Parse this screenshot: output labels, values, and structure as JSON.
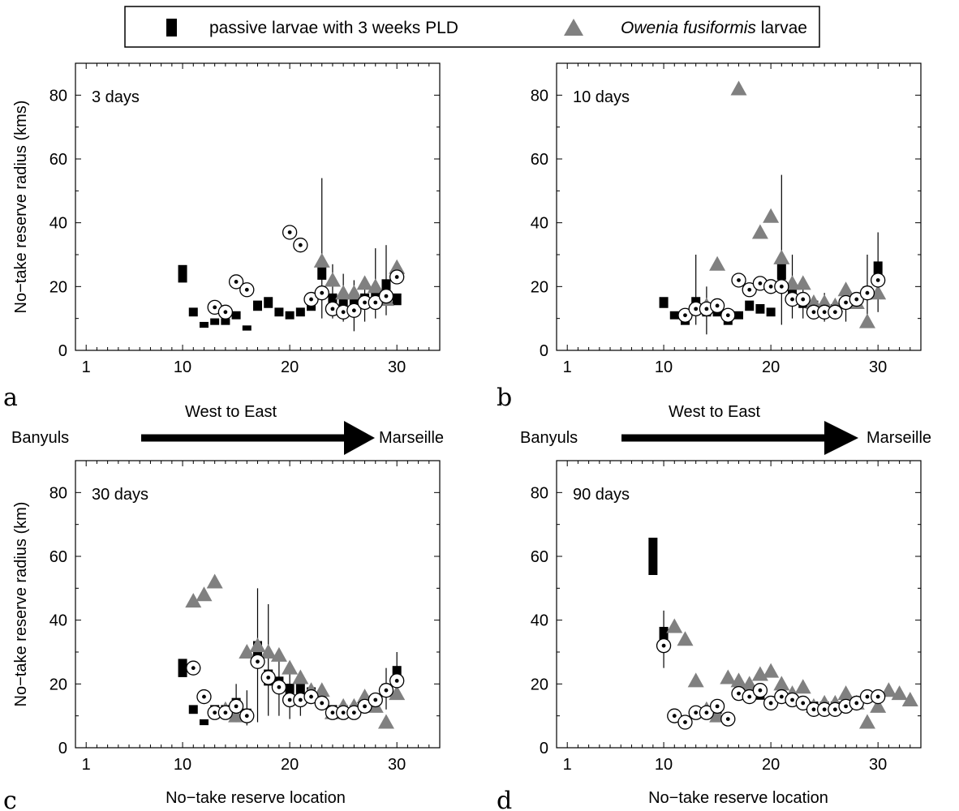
{
  "legend": {
    "passive_label": "passive larvae with 3 weeks PLD",
    "owenia_label_italic": "Owenia fusiformis",
    "owenia_label_rest": " larvae"
  },
  "colors": {
    "passive": "#000000",
    "owenia": "#808080",
    "axis": "#000000"
  },
  "direction": {
    "west": "Banyuls",
    "east": "Marseille",
    "label": "West to East"
  },
  "axes": {
    "ylabel_top": "No−take reserve radius (kms)",
    "ylabel_bottom": "No−take reserve radius (km)",
    "xlabel": "No−take reserve location",
    "xticks": [
      1,
      10,
      20,
      30
    ],
    "yticks": [
      0,
      20,
      40,
      60,
      80
    ],
    "xlim": [
      0,
      34
    ],
    "ylim": [
      0,
      90
    ]
  },
  "chart_data": [
    {
      "type": "scatter",
      "panel": "a",
      "annotation": "3 days",
      "series": [
        {
          "name": "passive larvae with 3 weeks PLD",
          "marker": "box",
          "points": [
            [
              10,
              24
            ],
            [
              11,
              12
            ],
            [
              12,
              8
            ],
            [
              13,
              9
            ],
            [
              14,
              9
            ],
            [
              15,
              11
            ],
            [
              16,
              7
            ],
            [
              17,
              14
            ],
            [
              18,
              15
            ],
            [
              19,
              12
            ],
            [
              20,
              11
            ],
            [
              21,
              12
            ],
            [
              22,
              14
            ],
            [
              23,
              25
            ],
            [
              24,
              16
            ],
            [
              25,
              15
            ],
            [
              26,
              15
            ],
            [
              27,
              16
            ],
            [
              28,
              17
            ],
            [
              29,
              20
            ],
            [
              30,
              16
            ]
          ],
          "whiskers": [
            [
              23,
              10,
              54
            ],
            [
              24,
              10,
              27
            ],
            [
              25,
              9,
              24
            ],
            [
              26,
              6,
              22
            ],
            [
              27,
              9,
              22
            ],
            [
              28,
              10,
              32
            ],
            [
              29,
              11,
              33
            ]
          ]
        },
        {
          "name": "Owenia fusiformis larvae",
          "marker": "triangle",
          "points": [
            [
              23,
              28
            ],
            [
              24,
              22
            ],
            [
              25,
              18
            ],
            [
              26,
              18
            ],
            [
              27,
              21
            ],
            [
              28,
              20
            ],
            [
              29,
              16
            ],
            [
              30,
              26
            ]
          ]
        },
        {
          "marker": "circle-dot",
          "points": [
            [
              13,
              13.5
            ],
            [
              14,
              12
            ],
            [
              15,
              21.5
            ],
            [
              16,
              19
            ],
            [
              20,
              37
            ],
            [
              21,
              33
            ],
            [
              22,
              16
            ],
            [
              23,
              18
            ],
            [
              24,
              13
            ],
            [
              25,
              12
            ],
            [
              26,
              12.5
            ],
            [
              27,
              15
            ],
            [
              28,
              15
            ],
            [
              29,
              17
            ],
            [
              30,
              23
            ]
          ]
        }
      ]
    },
    {
      "type": "scatter",
      "panel": "b",
      "annotation": "10 days",
      "series": [
        {
          "name": "passive larvae with 3 weeks PLD",
          "marker": "box",
          "points": [
            [
              10,
              15
            ],
            [
              11,
              11
            ],
            [
              12,
              9
            ],
            [
              13,
              15
            ],
            [
              14,
              12
            ],
            [
              15,
              12
            ],
            [
              16,
              9
            ],
            [
              17,
              11
            ],
            [
              18,
              14
            ],
            [
              19,
              13
            ],
            [
              20,
              12
            ],
            [
              21,
              25
            ],
            [
              22,
              18
            ],
            [
              23,
              15
            ],
            [
              24,
              14
            ],
            [
              25,
              13
            ],
            [
              26,
              13
            ],
            [
              27,
              15
            ],
            [
              28,
              15
            ],
            [
              29,
              18
            ],
            [
              30,
              25
            ]
          ],
          "whiskers": [
            [
              13,
              8,
              30
            ],
            [
              14,
              5,
              20
            ],
            [
              21,
              8,
              55
            ],
            [
              22,
              10,
              30
            ],
            [
              23,
              10,
              22
            ],
            [
              25,
              9,
              18
            ],
            [
              27,
              9,
              20
            ],
            [
              29,
              10,
              30
            ],
            [
              30,
              12,
              37
            ]
          ]
        },
        {
          "name": "Owenia fusiformis larvae",
          "marker": "triangle",
          "points": [
            [
              14,
              14
            ],
            [
              15,
              27
            ],
            [
              17,
              82
            ],
            [
              19,
              37
            ],
            [
              20,
              42
            ],
            [
              21,
              29
            ],
            [
              22,
              21
            ],
            [
              23,
              21
            ],
            [
              24,
              15
            ],
            [
              25,
              15
            ],
            [
              26,
              14
            ],
            [
              27,
              19
            ],
            [
              28,
              15
            ],
            [
              29,
              9
            ],
            [
              30,
              18
            ]
          ]
        },
        {
          "marker": "circle-dot",
          "points": [
            [
              12,
              11
            ],
            [
              13,
              13
            ],
            [
              14,
              13
            ],
            [
              15,
              14
            ],
            [
              16,
              11
            ],
            [
              17,
              22
            ],
            [
              18,
              19
            ],
            [
              19,
              21
            ],
            [
              20,
              20
            ],
            [
              21,
              20
            ],
            [
              22,
              16
            ],
            [
              23,
              16
            ],
            [
              24,
              12
            ],
            [
              25,
              12
            ],
            [
              26,
              12
            ],
            [
              27,
              15
            ],
            [
              28,
              16
            ],
            [
              29,
              18
            ],
            [
              30,
              22
            ]
          ]
        }
      ]
    },
    {
      "type": "scatter",
      "panel": "c",
      "annotation": "30 days",
      "series": [
        {
          "name": "passive larvae with 3 weeks PLD",
          "marker": "box",
          "points": [
            [
              10,
              25
            ],
            [
              11,
              12
            ],
            [
              12,
              8
            ],
            [
              13,
              12
            ],
            [
              14,
              12
            ],
            [
              15,
              14
            ],
            [
              16,
              11
            ],
            [
              17,
              30
            ],
            [
              18,
              22
            ],
            [
              19,
              20
            ],
            [
              20,
              18
            ],
            [
              21,
              18
            ],
            [
              22,
              17
            ],
            [
              23,
              15
            ],
            [
              24,
              12
            ],
            [
              25,
              12
            ],
            [
              26,
              12
            ],
            [
              27,
              14
            ],
            [
              28,
              15
            ],
            [
              29,
              18
            ],
            [
              30,
              23
            ]
          ],
          "whiskers": [
            [
              15,
              8,
              20
            ],
            [
              16,
              7,
              18
            ],
            [
              17,
              8,
              50
            ],
            [
              18,
              10,
              45
            ],
            [
              19,
              10,
              30
            ],
            [
              20,
              9,
              25
            ],
            [
              21,
              10,
              24
            ],
            [
              29,
              12,
              25
            ],
            [
              30,
              15,
              30
            ]
          ]
        },
        {
          "name": "Owenia fusiformis larvae",
          "marker": "triangle",
          "points": [
            [
              11,
              46
            ],
            [
              12,
              48
            ],
            [
              13,
              52
            ],
            [
              14,
              12
            ],
            [
              15,
              10
            ],
            [
              16,
              30
            ],
            [
              17,
              32
            ],
            [
              18,
              30
            ],
            [
              19,
              29
            ],
            [
              20,
              25
            ],
            [
              21,
              22
            ],
            [
              22,
              18
            ],
            [
              23,
              18
            ],
            [
              24,
              11
            ],
            [
              25,
              13
            ],
            [
              26,
              13
            ],
            [
              27,
              16
            ],
            [
              28,
              13
            ],
            [
              29,
              8
            ],
            [
              30,
              17
            ]
          ]
        },
        {
          "marker": "circle-dot",
          "points": [
            [
              11,
              25
            ],
            [
              12,
              16
            ],
            [
              13,
              11
            ],
            [
              14,
              11
            ],
            [
              15,
              13
            ],
            [
              16,
              10
            ],
            [
              17,
              27
            ],
            [
              18,
              22
            ],
            [
              19,
              19
            ],
            [
              20,
              15
            ],
            [
              21,
              15
            ],
            [
              22,
              16
            ],
            [
              23,
              14
            ],
            [
              24,
              11
            ],
            [
              25,
              11
            ],
            [
              26,
              11
            ],
            [
              27,
              13
            ],
            [
              28,
              15
            ],
            [
              29,
              18
            ],
            [
              30,
              21
            ]
          ]
        }
      ]
    },
    {
      "type": "scatter",
      "panel": "d",
      "annotation": "90 days",
      "series": [
        {
          "name": "passive larvae with 3 weeks PLD",
          "marker": "box",
          "points": [
            [
              9,
              60
            ],
            [
              10,
              34
            ],
            [
              11,
              10
            ],
            [
              12,
              8
            ],
            [
              13,
              11
            ],
            [
              14,
              11
            ],
            [
              15,
              12
            ],
            [
              16,
              9
            ],
            [
              17,
              17
            ],
            [
              18,
              16
            ],
            [
              19,
              17
            ],
            [
              20,
              14
            ],
            [
              21,
              16
            ],
            [
              22,
              15
            ],
            [
              23,
              14
            ],
            [
              24,
              13
            ],
            [
              25,
              13
            ],
            [
              26,
              13
            ],
            [
              27,
              14
            ],
            [
              28,
              14
            ],
            [
              29,
              16
            ],
            [
              30,
              16
            ]
          ],
          "whiskers": [
            [
              10,
              25,
              43
            ]
          ]
        },
        {
          "name": "Owenia fusiformis larvae",
          "marker": "triangle",
          "points": [
            [
              11,
              38
            ],
            [
              12,
              34
            ],
            [
              13,
              21
            ],
            [
              14,
              12
            ],
            [
              15,
              10
            ],
            [
              16,
              22
            ],
            [
              17,
              21
            ],
            [
              18,
              20
            ],
            [
              19,
              23
            ],
            [
              20,
              24
            ],
            [
              21,
              20
            ],
            [
              22,
              17
            ],
            [
              23,
              19
            ],
            [
              24,
              13
            ],
            [
              25,
              14
            ],
            [
              26,
              14
            ],
            [
              27,
              17
            ],
            [
              28,
              14
            ],
            [
              29,
              8
            ],
            [
              30,
              13
            ],
            [
              31,
              18
            ],
            [
              32,
              17
            ],
            [
              33,
              15
            ]
          ]
        },
        {
          "marker": "circle-dot",
          "points": [
            [
              10,
              32
            ],
            [
              11,
              10
            ],
            [
              12,
              8
            ],
            [
              13,
              11
            ],
            [
              14,
              11
            ],
            [
              15,
              13
            ],
            [
              16,
              9
            ],
            [
              17,
              17
            ],
            [
              18,
              16
            ],
            [
              19,
              18
            ],
            [
              20,
              14
            ],
            [
              21,
              16
            ],
            [
              22,
              15
            ],
            [
              23,
              14
            ],
            [
              24,
              12
            ],
            [
              25,
              12
            ],
            [
              26,
              12
            ],
            [
              27,
              13
            ],
            [
              28,
              14
            ],
            [
              29,
              16
            ],
            [
              30,
              16
            ]
          ]
        }
      ]
    }
  ]
}
